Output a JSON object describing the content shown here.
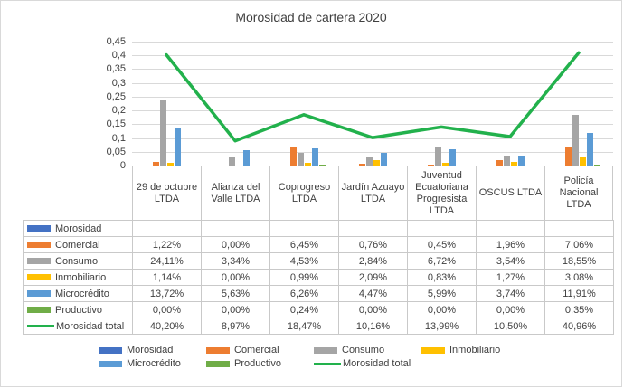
{
  "title": "Morosidad de cartera 2020",
  "chart_data": {
    "type": "bar",
    "subtype": "clustered-bars-with-line-overlay",
    "title": "Morosidad de cartera 2020",
    "xlabel": "",
    "ylabel": "",
    "ylim": [
      0,
      0.45
    ],
    "grid": true,
    "legend_position": "bottom",
    "y_ticks": [
      {
        "value_pct": 0,
        "label": "0"
      },
      {
        "value_pct": 5,
        "label": "0,05"
      },
      {
        "value_pct": 10,
        "label": "0,1"
      },
      {
        "value_pct": 15,
        "label": "0,15"
      },
      {
        "value_pct": 20,
        "label": "0,2"
      },
      {
        "value_pct": 25,
        "label": "0,25"
      },
      {
        "value_pct": 30,
        "label": "0,3"
      },
      {
        "value_pct": 35,
        "label": "0,35"
      },
      {
        "value_pct": 40,
        "label": "0,4"
      },
      {
        "value_pct": 45,
        "label": "0,45"
      }
    ],
    "categories": [
      "29 de octubre LTDA",
      "Alianza del Valle LTDA",
      "Coprogreso LTDA",
      "Jardín Azuayo LTDA",
      "Juventud Ecuatoriana Progresista LTDA",
      "OSCUS LTDA",
      "Policía Nacional LTDA"
    ],
    "series": [
      {
        "name": "Morosidad",
        "kind": "bar",
        "color": "#4472C4",
        "values_pct": [
          null,
          null,
          null,
          null,
          null,
          null,
          null
        ],
        "labels": [
          "",
          "",
          "",
          "",
          "",
          "",
          ""
        ]
      },
      {
        "name": "Comercial",
        "kind": "bar",
        "color": "#ED7D31",
        "values_pct": [
          1.22,
          0.0,
          6.45,
          0.76,
          0.45,
          1.96,
          7.06
        ],
        "labels": [
          "1,22%",
          "0,00%",
          "6,45%",
          "0,76%",
          "0,45%",
          "1,96%",
          "7,06%"
        ]
      },
      {
        "name": "Consumo",
        "kind": "bar",
        "color": "#A5A5A5",
        "values_pct": [
          24.11,
          3.34,
          4.53,
          2.84,
          6.72,
          3.54,
          18.55
        ],
        "labels": [
          "24,11%",
          "3,34%",
          "4,53%",
          "2,84%",
          "6,72%",
          "3,54%",
          "18,55%"
        ]
      },
      {
        "name": "Inmobiliario",
        "kind": "bar",
        "color": "#FFC000",
        "values_pct": [
          1.14,
          0.0,
          0.99,
          2.09,
          0.83,
          1.27,
          3.08
        ],
        "labels": [
          "1,14%",
          "0,00%",
          "0,99%",
          "2,09%",
          "0,83%",
          "1,27%",
          "3,08%"
        ]
      },
      {
        "name": "Microcrédito",
        "kind": "bar",
        "color": "#5B9BD5",
        "values_pct": [
          13.72,
          5.63,
          6.26,
          4.47,
          5.99,
          3.74,
          11.91
        ],
        "labels": [
          "13,72%",
          "5,63%",
          "6,26%",
          "4,47%",
          "5,99%",
          "3,74%",
          "11,91%"
        ]
      },
      {
        "name": "Productivo",
        "kind": "bar",
        "color": "#70AD47",
        "values_pct": [
          0.0,
          0.0,
          0.24,
          0.0,
          0.0,
          0.0,
          0.35
        ],
        "labels": [
          "0,00%",
          "0,00%",
          "0,24%",
          "0,00%",
          "0,00%",
          "0,00%",
          "0,35%"
        ]
      },
      {
        "name": "Morosidad total",
        "kind": "line",
        "color": "#22B14C",
        "values_pct": [
          40.2,
          8.97,
          18.47,
          10.16,
          13.99,
          10.5,
          40.96
        ],
        "labels": [
          "40,20%",
          "8,97%",
          "18,47%",
          "10,16%",
          "13,99%",
          "10,50%",
          "40,96%"
        ]
      }
    ]
  },
  "legend": {
    "rows": [
      [
        "Morosidad",
        "Comercial",
        "Consumo",
        "Inmobiliario"
      ],
      [
        "Microcrédito",
        "Productivo",
        "Morosidad total"
      ]
    ]
  },
  "colors": {
    "gridline": "#d9d9d9",
    "axis_line": "#bfbfbf",
    "table_border": "#c9c9c9",
    "text": "#404040"
  }
}
